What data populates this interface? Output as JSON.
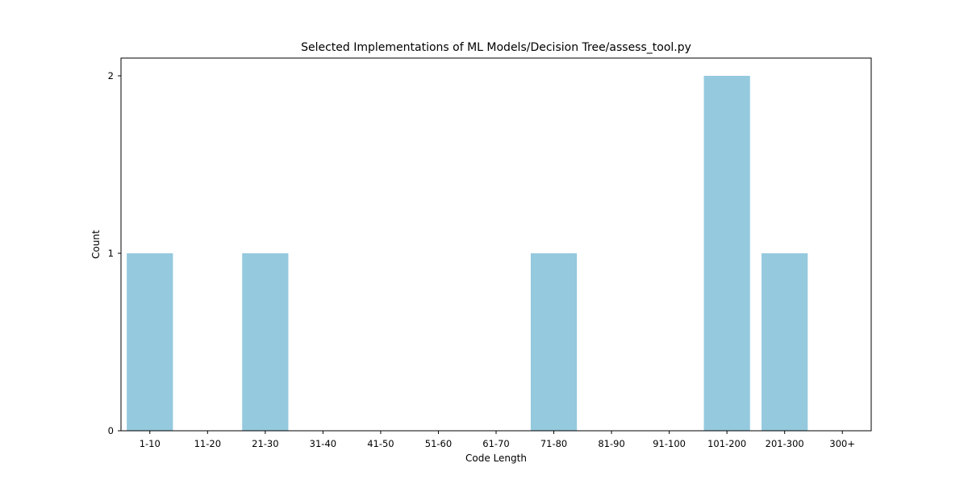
{
  "chart_data": {
    "type": "bar",
    "title": "Selected Implementations of ML Models/Decision Tree/assess_tool.py",
    "xlabel": "Code Length",
    "ylabel": "Count",
    "categories": [
      "1-10",
      "11-20",
      "21-30",
      "31-40",
      "41-50",
      "51-60",
      "61-70",
      "71-80",
      "81-90",
      "91-100",
      "101-200",
      "201-300",
      "300+"
    ],
    "values": [
      1,
      0,
      1,
      0,
      0,
      0,
      0,
      1,
      0,
      0,
      2,
      1,
      0
    ],
    "ylim": [
      0,
      2.1
    ],
    "yticks": [
      0,
      1,
      2
    ],
    "bar_color": "#95c9de",
    "grid": false,
    "legend": "none"
  }
}
